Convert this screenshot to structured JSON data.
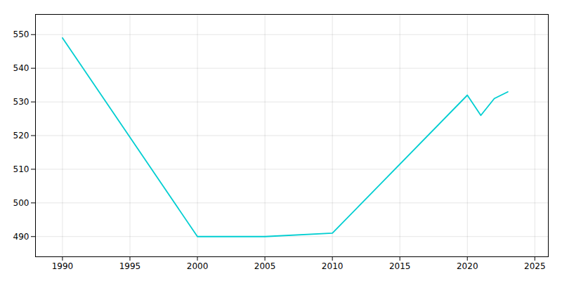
{
  "chart_data": {
    "type": "line",
    "x": [
      1990,
      2000,
      2005,
      2010,
      2020,
      2021,
      2022,
      2023
    ],
    "values": [
      549,
      490,
      490,
      491,
      532,
      526,
      531,
      533
    ],
    "color": "#00CED1",
    "xlim": [
      1988,
      2026
    ],
    "ylim": [
      484,
      556
    ],
    "xticks": [
      1990,
      1995,
      2000,
      2005,
      2010,
      2015,
      2020,
      2025
    ],
    "yticks": [
      490,
      500,
      510,
      520,
      530,
      540,
      550
    ],
    "grid": true
  }
}
